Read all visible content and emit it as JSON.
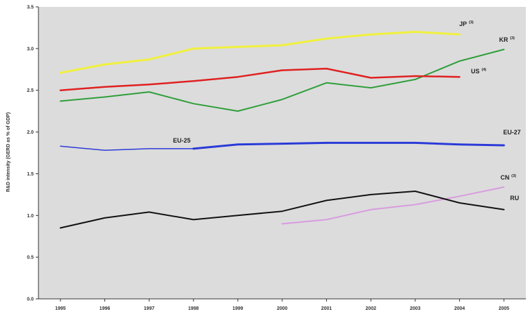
{
  "chart_data": {
    "type": "line",
    "title": "",
    "xlabel": "",
    "ylabel": "R&D intensity (GERD as % of GDP)",
    "x": [
      1995,
      1996,
      1997,
      1998,
      1999,
      2000,
      2001,
      2002,
      2003,
      2004,
      2005
    ],
    "x_tick_labels": [
      "1995",
      "1996",
      "1997",
      "1998",
      "1999",
      "2000",
      "2001",
      "2002",
      "2003",
      "2004",
      "2005"
    ],
    "y_tick_labels": [
      "0.0",
      "0.5",
      "1.0",
      "1.5",
      "2.0",
      "2.5",
      "3.0",
      "3.5"
    ],
    "ylim": [
      0.0,
      3.5
    ],
    "grid": false,
    "legend": "inline labels at line ends",
    "series": [
      {
        "key": "jp",
        "name": "JP",
        "sup": "(3)",
        "color": "#f0f03c",
        "width": 3,
        "values": [
          2.71,
          2.81,
          2.87,
          3.0,
          3.02,
          3.04,
          3.12,
          3.17,
          3.2,
          3.17,
          null
        ]
      },
      {
        "key": "kr",
        "name": "KR",
        "sup": "(3)",
        "color": "#2e9e3a",
        "width": 2,
        "values": [
          2.37,
          2.42,
          2.48,
          2.34,
          2.25,
          2.39,
          2.59,
          2.53,
          2.63,
          2.85,
          2.99
        ]
      },
      {
        "key": "us",
        "name": "US",
        "sup": "(4)",
        "color": "#e02020",
        "width": 2.5,
        "values": [
          2.5,
          2.54,
          2.57,
          2.61,
          2.66,
          2.74,
          2.76,
          2.65,
          2.67,
          2.66,
          null
        ]
      },
      {
        "key": "eu",
        "name": "EU-27",
        "color": "#2a3ad8",
        "width": 3,
        "values": [
          null,
          null,
          null,
          1.8,
          1.85,
          1.86,
          1.87,
          1.87,
          1.87,
          1.85,
          1.84
        ]
      },
      {
        "key": "eu25",
        "name": "EU-25",
        "color": "#2a3ad8",
        "width": 1.5,
        "values": [
          1.83,
          1.78,
          1.8,
          1.8,
          null,
          null,
          null,
          null,
          null,
          null,
          null
        ]
      },
      {
        "key": "cn",
        "name": "CN",
        "sup": "(3)",
        "color": "#d99be0",
        "width": 2,
        "values": [
          null,
          null,
          null,
          null,
          null,
          0.9,
          0.95,
          1.07,
          1.13,
          1.23,
          1.34
        ]
      },
      {
        "key": "ru",
        "name": "RU",
        "color": "#111111",
        "width": 2,
        "values": [
          0.85,
          0.97,
          1.04,
          0.95,
          1.0,
          1.05,
          1.18,
          1.25,
          1.29,
          1.15,
          1.07
        ]
      }
    ]
  }
}
